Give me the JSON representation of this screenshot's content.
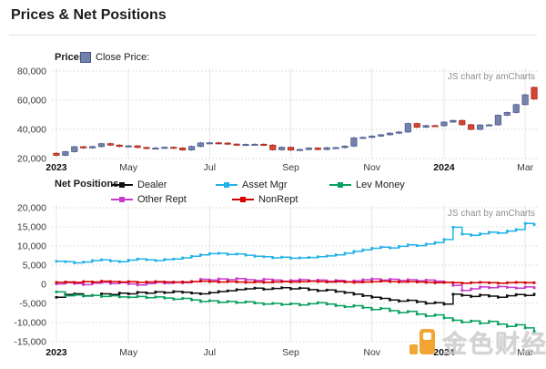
{
  "page": {
    "title": "Prices & Net Positions"
  },
  "price_chart": {
    "section_label": "Prices",
    "legend_label": "Close Price:",
    "legend_swatch_color": "#7181a9",
    "credit": "JS chart by amCharts"
  },
  "positions_chart": {
    "section_label": "Net Positions",
    "credit": "JS chart by amCharts"
  },
  "watermark": {
    "text": "金色财经",
    "logo_color": "#f0960f"
  },
  "chart_data": [
    {
      "type": "candlestick",
      "title": "Prices",
      "series_name": "Close Price",
      "ylabel": "",
      "ylim": [
        20000,
        80000
      ],
      "y_ticks": [
        20000,
        40000,
        60000,
        80000
      ],
      "x_ticks": [
        {
          "label": "2023",
          "week": 0,
          "bold": true
        },
        {
          "label": "May",
          "week": 8,
          "bold": false
        },
        {
          "label": "Jul",
          "week": 17,
          "bold": false
        },
        {
          "label": "Sep",
          "week": 26,
          "bold": false
        },
        {
          "label": "Nov",
          "week": 35,
          "bold": false
        },
        {
          "label": "2024",
          "week": 43,
          "bold": true
        },
        {
          "label": "Mar",
          "week": 52,
          "bold": false
        }
      ],
      "colors": {
        "up_fill": "#7583ab",
        "up_stroke": "#4d5d8f",
        "down_fill": "#d64434",
        "down_stroke": "#a62a1e"
      },
      "candles_open_close": [
        [
          23600,
          22200
        ],
        [
          22200,
          24700
        ],
        [
          24700,
          28100
        ],
        [
          28100,
          27300
        ],
        [
          27300,
          28200
        ],
        [
          28200,
          30200
        ],
        [
          30200,
          29200
        ],
        [
          29200,
          28300
        ],
        [
          28300,
          28700
        ],
        [
          28700,
          27600
        ],
        [
          27600,
          27000
        ],
        [
          27000,
          27200
        ],
        [
          27200,
          27700
        ],
        [
          27700,
          27200
        ],
        [
          27200,
          25900
        ],
        [
          25900,
          28300
        ],
        [
          28300,
          30700
        ],
        [
          30700,
          30800
        ],
        [
          30800,
          30600
        ],
        [
          30600,
          29900
        ],
        [
          29900,
          29200
        ],
        [
          29200,
          29700
        ],
        [
          29700,
          29800
        ],
        [
          29800,
          29200
        ],
        [
          29200,
          26000
        ],
        [
          26000,
          27700
        ],
        [
          27700,
          25800
        ],
        [
          25800,
          26200
        ],
        [
          26200,
          27200
        ],
        [
          27200,
          26200
        ],
        [
          26200,
          27400
        ],
        [
          27400,
          27500
        ],
        [
          27500,
          28500
        ],
        [
          28500,
          34200
        ],
        [
          34200,
          34500
        ],
        [
          34500,
          35400
        ],
        [
          35400,
          36300
        ],
        [
          36300,
          37400
        ],
        [
          37400,
          38200
        ],
        [
          38200,
          44000
        ],
        [
          44000,
          41500
        ],
        [
          41500,
          42600
        ],
        [
          42600,
          42500
        ],
        [
          42500,
          45000
        ],
        [
          45000,
          46100
        ],
        [
          46100,
          43200
        ],
        [
          43200,
          40000
        ],
        [
          40000,
          43000
        ],
        [
          43000,
          43100
        ],
        [
          43100,
          49700
        ],
        [
          49700,
          51600
        ],
        [
          51600,
          57000
        ],
        [
          57000,
          63700
        ],
        [
          68800,
          60900
        ]
      ]
    },
    {
      "type": "line",
      "title": "Net Positions",
      "line_style": "step",
      "ylim": [
        -15000,
        20000
      ],
      "y_ticks": [
        -15000,
        -10000,
        -5000,
        0,
        5000,
        10000,
        15000,
        20000
      ],
      "x_ticks": [
        {
          "label": "2023",
          "week": 0,
          "bold": true
        },
        {
          "label": "May",
          "week": 8,
          "bold": false
        },
        {
          "label": "Jul",
          "week": 17,
          "bold": false
        },
        {
          "label": "Sep",
          "week": 26,
          "bold": false
        },
        {
          "label": "Nov",
          "week": 35,
          "bold": false
        },
        {
          "label": "2024",
          "week": 43,
          "bold": true
        },
        {
          "label": "Mar",
          "week": 52,
          "bold": false
        }
      ],
      "series": [
        {
          "name": "Dealer",
          "color": "#111111",
          "values": [
            -3400,
            -2700,
            -2500,
            -3000,
            -2900,
            -2500,
            -2700,
            -2300,
            -2500,
            -2100,
            -2300,
            -2000,
            -2200,
            -1900,
            -2100,
            -2300,
            -2500,
            -2200,
            -1900,
            -1700,
            -1400,
            -1200,
            -1000,
            -1300,
            -1100,
            -900,
            -1200,
            -1000,
            -1400,
            -1700,
            -1500,
            -1900,
            -2200,
            -2600,
            -3000,
            -3400,
            -3700,
            -4100,
            -4400,
            -4200,
            -4600,
            -5000,
            -4800,
            -5200,
            -2600,
            -2900,
            -3200,
            -2800,
            -3100,
            -3400,
            -3000,
            -2700,
            -2900,
            -2600
          ]
        },
        {
          "name": "Asset Mgr",
          "color": "#23b2e7",
          "values": [
            6000,
            5900,
            5600,
            5800,
            6200,
            6400,
            6100,
            5900,
            6300,
            6600,
            6400,
            6200,
            6500,
            6600,
            6900,
            7300,
            7700,
            8000,
            8100,
            7800,
            7900,
            7600,
            7300,
            7200,
            6900,
            7100,
            6800,
            6900,
            7000,
            7200,
            7400,
            7700,
            8100,
            8600,
            9000,
            9400,
            9700,
            9500,
            9900,
            10300,
            10100,
            10500,
            10900,
            11700,
            14900,
            13100,
            12800,
            13200,
            13600,
            13400,
            13900,
            14300,
            15900,
            15600
          ]
        },
        {
          "name": "Lev Money",
          "color": "#0aa15f",
          "values": [
            -2000,
            -3000,
            -2800,
            -3100,
            -2900,
            -3200,
            -3000,
            -3300,
            -3400,
            -3200,
            -3500,
            -3300,
            -3600,
            -3900,
            -3700,
            -4100,
            -4500,
            -4300,
            -4700,
            -4500,
            -4800,
            -4600,
            -4900,
            -5200,
            -5000,
            -5300,
            -5100,
            -5400,
            -5100,
            -4800,
            -5200,
            -5600,
            -5900,
            -5600,
            -6100,
            -6600,
            -6300,
            -6900,
            -7400,
            -7100,
            -7800,
            -8300,
            -8000,
            -8800,
            -9400,
            -9900,
            -9600,
            -10200,
            -9700,
            -10400,
            -11000,
            -10600,
            -11400,
            -12300
          ]
        },
        {
          "name": "Other Rept",
          "color": "#c93bc9",
          "values": [
            100,
            400,
            200,
            -100,
            300,
            500,
            200,
            400,
            100,
            -200,
            200,
            500,
            300,
            600,
            400,
            700,
            1300,
            1100,
            1400,
            1200,
            1500,
            1200,
            1000,
            1300,
            1100,
            800,
            1000,
            1200,
            900,
            1100,
            800,
            1000,
            700,
            900,
            1200,
            1400,
            1100,
            1300,
            1000,
            1200,
            900,
            1100,
            800,
            500,
            -300,
            -1600,
            -1200,
            -700,
            -900,
            -600,
            -800,
            -1000,
            -700,
            -900
          ]
        },
        {
          "name": "NonRept",
          "color": "#d40000",
          "values": [
            500,
            600,
            500,
            700,
            600,
            800,
            700,
            600,
            700,
            500,
            600,
            700,
            600,
            500,
            600,
            700,
            800,
            700,
            600,
            700,
            600,
            500,
            600,
            500,
            600,
            700,
            600,
            700,
            800,
            700,
            600,
            700,
            600,
            500,
            600,
            700,
            800,
            700,
            600,
            700,
            600,
            500,
            400,
            500,
            400,
            300,
            400,
            500,
            400,
            300,
            400,
            500,
            400,
            400
          ]
        }
      ]
    }
  ]
}
